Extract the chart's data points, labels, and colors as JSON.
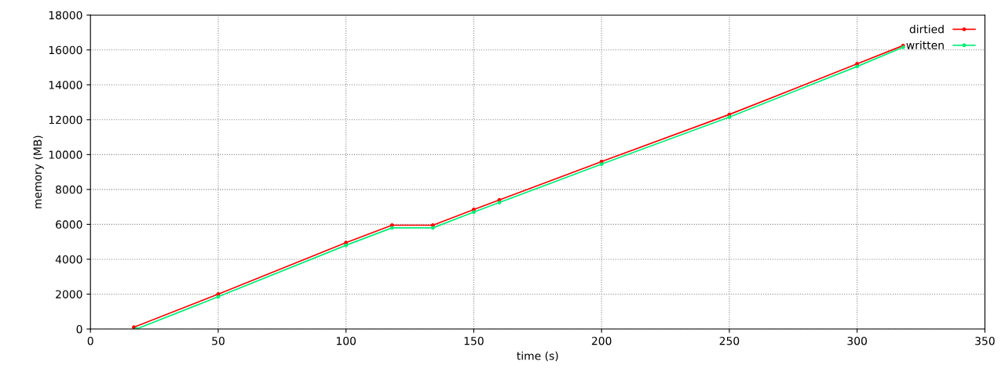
{
  "chart_data": {
    "type": "line",
    "xlabel": "time (s)",
    "ylabel": "memory (MB)",
    "xlim": [
      0,
      350
    ],
    "xticks": [
      0,
      50,
      100,
      150,
      200,
      250,
      300,
      350
    ],
    "ylim": [
      0,
      18000
    ],
    "yticks": [
      0,
      2000,
      4000,
      6000,
      8000,
      10000,
      12000,
      14000,
      16000,
      18000
    ],
    "grid": true,
    "legend": "top right",
    "marker": "circle",
    "line_style": "solid",
    "series": [
      {
        "name": "dirtied",
        "color": "#ff0000",
        "x": [
          17,
          50,
          100,
          118,
          134,
          150,
          160,
          200,
          250,
          300,
          318
        ],
        "values": [
          100,
          2000,
          4950,
          5950,
          5950,
          6850,
          7400,
          9600,
          12300,
          15200,
          16250
        ]
      },
      {
        "name": "written",
        "color": "#00ee77",
        "x": [
          18,
          50,
          100,
          118,
          134,
          150,
          160,
          200,
          250,
          300,
          318
        ],
        "values": [
          0,
          1850,
          4800,
          5800,
          5800,
          6700,
          7250,
          9450,
          12150,
          15050,
          16150
        ]
      }
    ]
  }
}
